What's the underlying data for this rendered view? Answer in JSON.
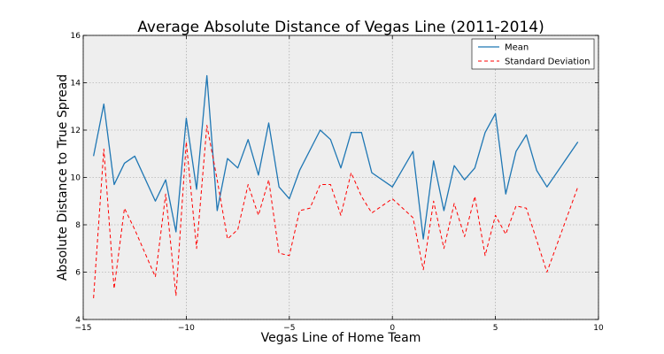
{
  "chart_data": {
    "type": "line",
    "title": "Average Absolute Distance of Vegas Line (2011-2014)",
    "xlabel": "Vegas Line of Home Team",
    "ylabel": "Absolute Distance to True Spread",
    "xlim": [
      -15,
      10
    ],
    "ylim": [
      4,
      16
    ],
    "xticks": [
      -15,
      -10,
      -5,
      0,
      5,
      10
    ],
    "yticks": [
      4,
      6,
      8,
      10,
      12,
      14,
      16
    ],
    "grid": true,
    "legend_position": "top-right",
    "series": [
      {
        "name": "Mean",
        "color": "#1f77b4",
        "style": "solid",
        "points": [
          [
            -14.5,
            10.9
          ],
          [
            -14,
            13.1
          ],
          [
            -13.5,
            9.7
          ],
          [
            -13,
            10.6
          ],
          [
            -12.5,
            10.9
          ],
          [
            -11.5,
            9.0
          ],
          [
            -11,
            9.9
          ],
          [
            -10.5,
            7.7
          ],
          [
            -10,
            12.5
          ],
          [
            -9.5,
            9.5
          ],
          [
            -9,
            14.3
          ],
          [
            -8.5,
            8.6
          ],
          [
            -8,
            10.8
          ],
          [
            -7.5,
            10.4
          ],
          [
            -7,
            11.6
          ],
          [
            -6.5,
            10.1
          ],
          [
            -6,
            12.3
          ],
          [
            -5.5,
            9.6
          ],
          [
            -5,
            9.1
          ],
          [
            -4.5,
            10.3
          ],
          [
            -3.5,
            12.0
          ],
          [
            -3,
            11.6
          ],
          [
            -2.5,
            10.4
          ],
          [
            -2,
            11.9
          ],
          [
            -1.5,
            11.9
          ],
          [
            -1,
            10.2
          ],
          [
            0,
            9.6
          ],
          [
            1,
            11.1
          ],
          [
            1.5,
            7.4
          ],
          [
            2,
            10.7
          ],
          [
            2.5,
            8.6
          ],
          [
            3,
            10.5
          ],
          [
            3.5,
            9.9
          ],
          [
            4,
            10.4
          ],
          [
            4.5,
            11.9
          ],
          [
            5,
            12.7
          ],
          [
            5.5,
            9.3
          ],
          [
            6,
            11.1
          ],
          [
            6.5,
            11.8
          ],
          [
            7,
            10.3
          ],
          [
            7.5,
            9.6
          ],
          [
            9,
            11.5
          ]
        ]
      },
      {
        "name": "Standard Deviation",
        "color": "#ff0000",
        "style": "dashed",
        "points": [
          [
            -14.5,
            4.9
          ],
          [
            -14,
            11.2
          ],
          [
            -13.5,
            5.3
          ],
          [
            -13,
            8.7
          ],
          [
            -12.5,
            7.8
          ],
          [
            -11.5,
            5.8
          ],
          [
            -11,
            9.3
          ],
          [
            -10.5,
            5.0
          ],
          [
            -10,
            11.5
          ],
          [
            -9.5,
            7.0
          ],
          [
            -9,
            12.2
          ],
          [
            -8.5,
            9.9
          ],
          [
            -8,
            7.4
          ],
          [
            -7.5,
            7.8
          ],
          [
            -7,
            9.7
          ],
          [
            -6.5,
            8.4
          ],
          [
            -6,
            9.9
          ],
          [
            -5.5,
            6.8
          ],
          [
            -5,
            6.7
          ],
          [
            -4.5,
            8.6
          ],
          [
            -4,
            8.7
          ],
          [
            -3.5,
            9.7
          ],
          [
            -3,
            9.7
          ],
          [
            -2.5,
            8.4
          ],
          [
            -2,
            10.2
          ],
          [
            -1.5,
            9.2
          ],
          [
            -1,
            8.5
          ],
          [
            0,
            9.1
          ],
          [
            1,
            8.3
          ],
          [
            1.5,
            6.1
          ],
          [
            2,
            9.0
          ],
          [
            2.5,
            7.0
          ],
          [
            3,
            8.9
          ],
          [
            3.5,
            7.5
          ],
          [
            4,
            9.2
          ],
          [
            4.5,
            6.7
          ],
          [
            5,
            8.4
          ],
          [
            5.5,
            7.6
          ],
          [
            6,
            8.8
          ],
          [
            6.5,
            8.7
          ],
          [
            7.5,
            6.0
          ],
          [
            9,
            9.6
          ]
        ]
      }
    ]
  }
}
